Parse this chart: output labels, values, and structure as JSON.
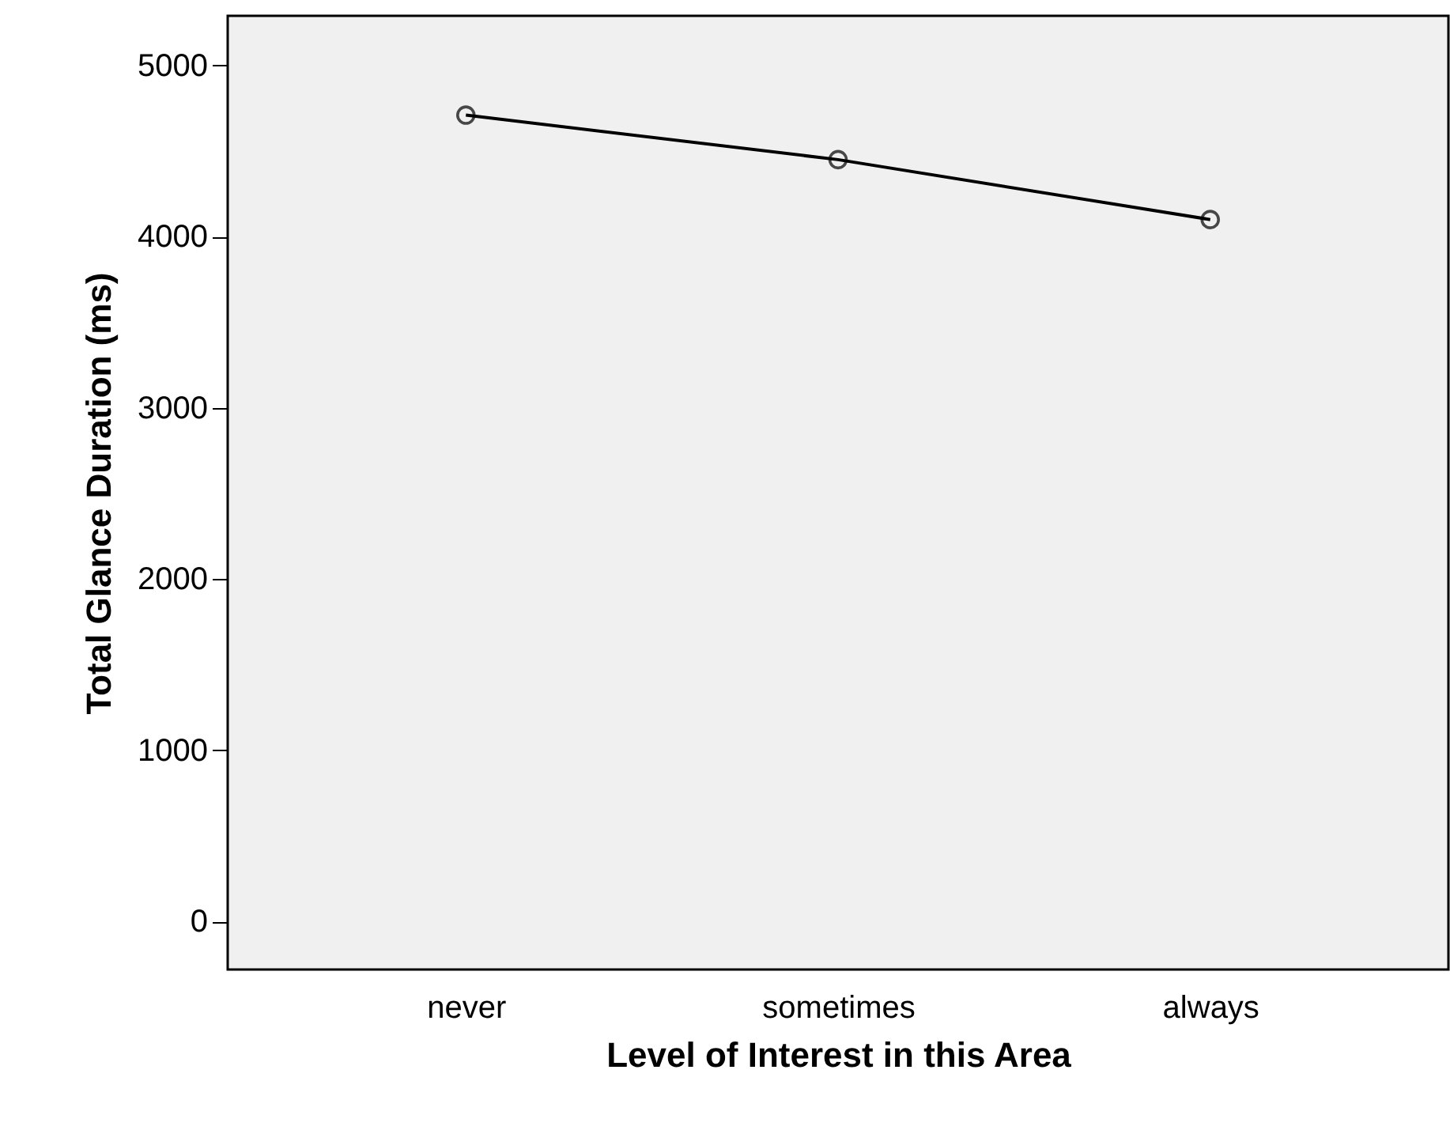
{
  "chart_data": {
    "type": "line",
    "xlabel": "Level of Interest in this Area",
    "ylabel": "Total Glance Duration (ms)",
    "categories": [
      "never",
      "sometimes",
      "always"
    ],
    "series": [
      {
        "color": "#000000",
        "values": [
          4710,
          4450,
          4100
        ]
      }
    ],
    "ylim": [
      -280,
      5290
    ],
    "yticks": [
      0,
      1000,
      2000,
      3000,
      4000,
      5000
    ],
    "marker": "circle",
    "line_style": "solid",
    "grid": false
  }
}
